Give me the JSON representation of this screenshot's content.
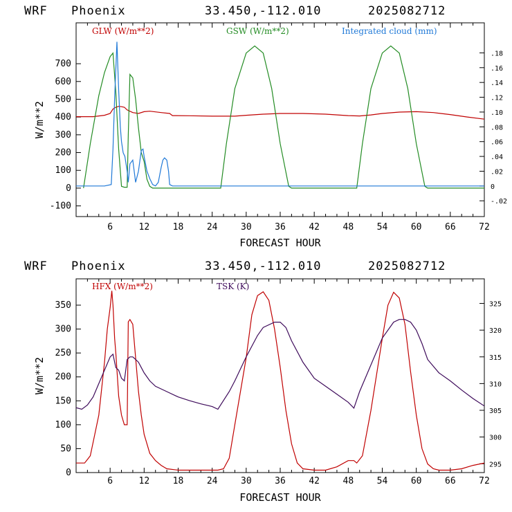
{
  "chart_data": [
    {
      "type": "line",
      "header": {
        "model": "WRF",
        "station": "Phoenix",
        "coords": "33.450,-112.010",
        "run": "2025082712"
      },
      "xlabel": "FORECAST HOUR",
      "ylabel": "W/m**2",
      "xlim": [
        0,
        72
      ],
      "x_ticks": [
        6,
        12,
        18,
        24,
        30,
        36,
        42,
        48,
        54,
        60,
        66,
        72
      ],
      "ylim": [
        -160,
        930
      ],
      "y_ticks": [
        -100,
        0,
        100,
        200,
        300,
        400,
        500,
        600,
        700
      ],
      "y2lim": [
        -0.0413,
        0.2206
      ],
      "y2_ticks": [
        -0.02,
        0,
        0.02,
        0.04,
        0.06,
        0.08,
        0.1,
        0.12,
        0.14,
        0.16,
        0.18
      ],
      "y2_tick_labels": [
        "-.02",
        "0",
        ".02",
        ".04",
        ".06",
        ".08",
        ".10",
        ".12",
        ".14",
        ".16",
        ".18"
      ],
      "series": [
        {
          "name": "GLW (W/m**2)",
          "color": "#c00000",
          "axis": "left",
          "x": [
            0,
            3,
            5,
            6,
            6.5,
            7,
            7.5,
            8,
            8.5,
            9,
            10,
            11,
            12,
            13,
            15,
            16.5,
            17,
            20,
            24,
            25,
            28,
            30,
            33,
            36,
            40,
            44,
            48,
            50,
            52,
            54,
            57,
            60,
            63,
            66,
            69,
            72
          ],
          "y": [
            402,
            402,
            410,
            420,
            445,
            455,
            460,
            458,
            455,
            440,
            425,
            420,
            430,
            433,
            425,
            420,
            408,
            407,
            405,
            405,
            405,
            410,
            416,
            420,
            420,
            416,
            408,
            406,
            412,
            420,
            428,
            430,
            425,
            414,
            400,
            388
          ]
        },
        {
          "name": "GSW (W/m**2)",
          "color": "#228b22",
          "axis": "left",
          "x": [
            1.3,
            2.5,
            4,
            5,
            6,
            6.5,
            7,
            7.5,
            8,
            8.5,
            9,
            9.2,
            9.5,
            10,
            10.5,
            11,
            11.5,
            12,
            12.5,
            13,
            13.5,
            14,
            16,
            20,
            24,
            25.5,
            26.5,
            28,
            30,
            31.5,
            33,
            34.5,
            36,
            37.5,
            38,
            40,
            44,
            48,
            49.5,
            50.5,
            52,
            54,
            55.5,
            57,
            58.5,
            60,
            61.5,
            62,
            66,
            72
          ],
          "y": [
            0,
            250,
            520,
            650,
            740,
            760,
            540,
            220,
            10,
            5,
            5,
            300,
            640,
            620,
            500,
            340,
            200,
            150,
            50,
            10,
            0,
            0,
            0,
            0,
            0,
            0,
            250,
            560,
            760,
            800,
            760,
            560,
            250,
            10,
            0,
            0,
            0,
            0,
            0,
            250,
            560,
            760,
            800,
            760,
            560,
            250,
            10,
            0,
            0,
            0
          ]
        },
        {
          "name": "Integrated cloud (mm)",
          "color": "#1e78d7",
          "axis": "right",
          "x": [
            0,
            5,
            6.2,
            6.5,
            6.8,
            7,
            7.2,
            7.5,
            7.8,
            8,
            8.3,
            8.6,
            9,
            9.2,
            9.5,
            10,
            10.5,
            11,
            11.5,
            11.8,
            12,
            12.5,
            13,
            13.5,
            14,
            14.5,
            15,
            15.3,
            15.6,
            16,
            16.3,
            16.5,
            17,
            20,
            72
          ],
          "y": [
            0,
            0,
            0.002,
            0.05,
            0.12,
            0.158,
            0.195,
            0.13,
            0.08,
            0.06,
            0.045,
            0.04,
            0.02,
            0.005,
            0.03,
            0.035,
            0.005,
            0.02,
            0.048,
            0.05,
            0.04,
            0.02,
            0.01,
            0.002,
            0,
            0.005,
            0.025,
            0.035,
            0.038,
            0.035,
            0.02,
            0.002,
            0,
            0,
            0
          ]
        }
      ]
    },
    {
      "type": "line",
      "header": {
        "model": "WRF",
        "station": "Phoenix",
        "coords": "33.450,-112.010",
        "run": "2025082712"
      },
      "xlabel": "FORECAST HOUR",
      "ylabel": "W/m**2",
      "xlim": [
        0,
        72
      ],
      "x_ticks": [
        6,
        12,
        18,
        24,
        30,
        36,
        42,
        48,
        54,
        60,
        66,
        72
      ],
      "ylim": [
        0,
        405
      ],
      "y_ticks": [
        0,
        50,
        100,
        150,
        200,
        250,
        300,
        350
      ],
      "y2lim": [
        293.35,
        329.6
      ],
      "y2_ticks": [
        295,
        300,
        305,
        310,
        315,
        320,
        325
      ],
      "series": [
        {
          "name": "HFX (W/m**2)",
          "color": "#c00000",
          "axis": "left",
          "x": [
            0,
            1.5,
            2.5,
            4,
            5,
            5.5,
            6,
            6.3,
            6.5,
            6.8,
            7,
            7.5,
            8,
            8.5,
            9,
            9.2,
            9.5,
            10,
            10.5,
            11,
            11.5,
            12,
            13,
            14,
            15,
            16,
            18,
            20,
            22,
            24,
            25,
            26,
            27,
            28,
            30,
            31,
            32,
            33,
            34,
            35,
            36,
            37,
            38,
            39,
            40,
            42,
            44,
            46,
            48,
            49,
            49.5,
            50.5,
            52,
            54,
            55,
            56,
            57,
            58,
            59,
            60,
            61,
            62,
            63,
            64,
            66,
            68,
            70,
            72
          ],
          "y": [
            20,
            20,
            35,
            120,
            230,
            300,
            345,
            380,
            350,
            280,
            250,
            160,
            120,
            100,
            100,
            315,
            320,
            310,
            240,
            170,
            120,
            80,
            40,
            25,
            15,
            8,
            5,
            5,
            5,
            5,
            5,
            8,
            30,
            100,
            240,
            330,
            370,
            378,
            360,
            300,
            220,
            130,
            60,
            20,
            8,
            5,
            5,
            12,
            25,
            25,
            20,
            35,
            130,
            280,
            350,
            377,
            365,
            310,
            210,
            120,
            50,
            18,
            8,
            5,
            5,
            8,
            15,
            20
          ]
        },
        {
          "name": "TSK (K)",
          "color": "#3d0a5a",
          "axis": "right",
          "x": [
            0,
            1,
            2,
            3,
            4,
            5,
            6,
            6.5,
            6.8,
            7,
            7.5,
            8,
            8.5,
            9,
            9.5,
            10,
            10.5,
            11,
            11.5,
            12,
            13,
            14,
            16,
            18,
            20,
            22,
            24,
            25,
            27,
            28,
            30,
            32,
            33,
            35,
            36,
            37,
            38,
            40,
            42,
            44,
            46,
            48,
            49,
            50,
            52,
            54,
            56,
            57,
            58,
            59,
            60,
            61,
            62,
            64,
            66,
            68,
            70,
            72
          ],
          "y": [
            305.5,
            305.2,
            306,
            307.5,
            310,
            312.5,
            315,
            315.5,
            314,
            313,
            312.5,
            311,
            310.5,
            314.5,
            315,
            315,
            314.5,
            314,
            313,
            312,
            310.5,
            309.5,
            308.5,
            307.5,
            306.8,
            306.2,
            305.7,
            305.2,
            308.5,
            310.5,
            315,
            319,
            320.5,
            321.5,
            321.5,
            320.5,
            318,
            314,
            311,
            309.5,
            308,
            306.5,
            305.4,
            308.5,
            313.5,
            318.5,
            321.5,
            322,
            322,
            321.5,
            320,
            317.5,
            314.5,
            312,
            310.5,
            308.8,
            307.2,
            305.8
          ]
        }
      ]
    }
  ]
}
